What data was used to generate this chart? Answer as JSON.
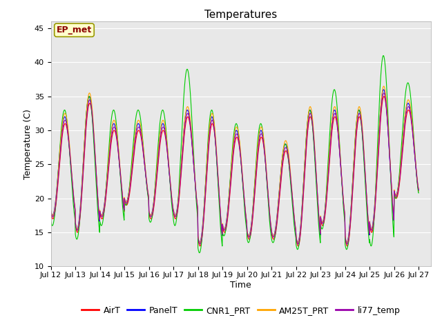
{
  "title": "Temperatures",
  "xlabel": "Time",
  "ylabel": "Temperature (C)",
  "ylim": [
    10,
    46
  ],
  "x_tick_labels": [
    "Jul 12",
    "Jul 13",
    "Jul 14",
    "Jul 15",
    "Jul 16",
    "Jul 17",
    "Jul 18",
    "Jul 19",
    "Jul 20",
    "Jul 21",
    "Jul 22",
    "Jul 23",
    "Jul 24",
    "Jul 25",
    "Jul 26",
    "Jul 27"
  ],
  "series_colors": {
    "AirT": "#FF0000",
    "PanelT": "#0000FF",
    "CNR1_PRT": "#00CC00",
    "AM25T_PRT": "#FFA500",
    "li77_temp": "#9900AA"
  },
  "legend_labels": [
    "AirT",
    "PanelT",
    "CNR1_PRT",
    "AM25T_PRT",
    "li77_temp"
  ],
  "annotation_text": "EP_met",
  "bg_color": "#E8E8E8",
  "fig_color": "#FFFFFF",
  "grid_color": "#FFFFFF",
  "title_fontsize": 11,
  "axis_fontsize": 9,
  "tick_fontsize": 8,
  "daily_max_air": [
    31,
    34,
    30,
    30,
    30,
    32,
    31,
    29,
    29,
    27,
    32,
    32,
    32,
    35,
    33
  ],
  "daily_min_air": [
    17,
    15,
    17,
    19,
    17,
    17,
    13,
    15,
    14,
    14,
    13,
    16,
    13,
    15,
    20
  ],
  "daily_max_cnr_extra": [
    2,
    1,
    3,
    3,
    3,
    7,
    2,
    2,
    2,
    1,
    1,
    4,
    1,
    6,
    4
  ],
  "daily_min_cnr_extra": [
    -1,
    -1,
    -1,
    0,
    -0.5,
    -1,
    -1,
    -0.5,
    -0.5,
    -0.5,
    -0.5,
    -0.5,
    -0.5,
    -2,
    0
  ],
  "n_days": 15
}
